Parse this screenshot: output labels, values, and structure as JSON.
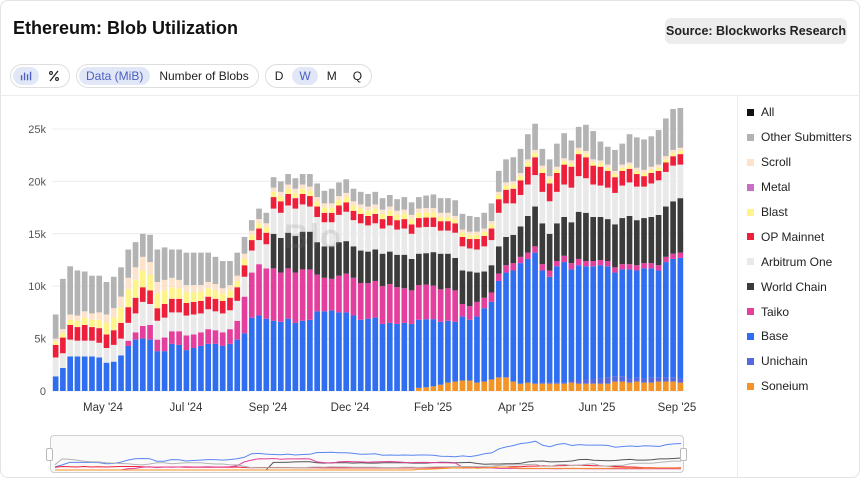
{
  "header": {
    "title": "Ethereum: Blob Utilization",
    "source_label": "Source: Blockworks Research"
  },
  "controls": {
    "bar_icon": "bar-chart-icon",
    "percent_icon": "percent-icon",
    "metric_options": [
      "Data (MiB)",
      "Number of Blobs"
    ],
    "metric_selected": "Data (MiB)",
    "interval_options": [
      "D",
      "W",
      "M",
      "Q"
    ],
    "interval_selected": "W"
  },
  "watermark": "Blo",
  "legend": [
    {
      "name": "All",
      "color": "#111111"
    },
    {
      "name": "Other Submitters",
      "color": "#b3b3b3"
    },
    {
      "name": "Scroll",
      "color": "#fde3cc"
    },
    {
      "name": "Metal",
      "color": "#c86ec4"
    },
    {
      "name": "Blast",
      "color": "#fef48a"
    },
    {
      "name": "OP Mainnet",
      "color": "#ee1f3b"
    },
    {
      "name": "Arbitrum One",
      "color": "#e9e9e9"
    },
    {
      "name": "World Chain",
      "color": "#3b3b3b"
    },
    {
      "name": "Taiko",
      "color": "#e43f9c"
    },
    {
      "name": "Base",
      "color": "#2f6ef0"
    },
    {
      "name": "Unichain",
      "color": "#5568e0"
    },
    {
      "name": "Soneium",
      "color": "#f59426"
    }
  ],
  "chart_data": {
    "type": "bar",
    "stacked": true,
    "y_tick_labels": [
      "0",
      "5k",
      "10k",
      "15k",
      "20k",
      "25k"
    ],
    "ylim": [
      0,
      25000
    ],
    "x_tick_labels": [
      "May '24",
      "Jul '24",
      "Sep '24",
      "Dec '24",
      "Feb '25",
      "Apr '25",
      "Jun '25",
      "Sep '25"
    ],
    "grid": true,
    "legend_position": "right",
    "series_order": [
      "Soneium",
      "Unichain",
      "Base",
      "Taiko",
      "World Chain",
      "Arbitrum One",
      "OP Mainnet",
      "Blast",
      "Metal",
      "Scroll",
      "Other Submitters"
    ],
    "series": [
      {
        "name": "Soneium",
        "values": [
          0,
          0,
          0,
          0,
          0,
          0,
          0,
          0,
          0,
          0,
          0,
          0,
          0,
          0,
          0,
          0,
          0,
          0,
          0,
          0,
          0,
          0,
          0,
          0,
          0,
          0,
          0,
          0,
          0,
          0,
          0,
          0,
          0,
          0,
          0,
          0,
          0,
          0,
          0,
          0,
          0,
          0,
          0,
          0,
          0,
          0,
          0,
          0,
          0,
          0,
          0,
          0,
          0,
          0,
          0,
          0,
          0,
          0,
          0,
          0,
          0,
          0,
          0,
          0,
          0,
          0,
          0,
          0,
          0,
          0,
          0,
          0,
          0,
          0,
          0,
          0,
          0,
          0,
          0,
          0,
          0,
          0,
          0,
          0,
          0,
          0,
          0
        ]
      },
      {
        "name": "Unichain",
        "values": [
          0,
          0,
          0,
          0,
          0,
          0,
          0,
          0,
          0,
          0,
          0,
          0,
          0,
          0,
          0,
          0,
          0,
          0,
          0,
          0,
          0,
          0,
          0,
          0,
          0,
          0,
          0,
          0,
          0,
          0,
          0,
          0,
          0,
          0,
          0,
          0,
          0,
          0,
          0,
          0,
          0,
          0,
          0,
          0,
          0,
          0,
          0,
          0,
          0,
          0,
          0,
          0,
          0,
          0,
          0,
          0,
          0,
          0,
          0,
          0,
          0,
          0,
          0,
          0,
          0,
          0,
          0,
          0,
          0,
          0,
          0,
          0,
          0,
          0,
          0,
          0,
          0,
          0,
          0,
          0,
          0,
          0,
          0,
          0,
          0,
          0,
          0
        ]
      }
    ],
    "note_values_by_week": "see weekly"
  },
  "weekly": {
    "Soneium": [
      0,
      0,
      0,
      0,
      0,
      0,
      0,
      0,
      0,
      0,
      0,
      0,
      0,
      0,
      0,
      0,
      0,
      0,
      0,
      0,
      0,
      0,
      0,
      0,
      0,
      0,
      0,
      0,
      0,
      0,
      0,
      0,
      0,
      0,
      0,
      0,
      0,
      0,
      0,
      0,
      0,
      0,
      0,
      0,
      0,
      0,
      0,
      0,
      0,
      0,
      300,
      350,
      450,
      600,
      800,
      900,
      1000,
      1000,
      800,
      900,
      1100,
      1300,
      1300,
      900,
      700,
      800,
      700,
      700,
      700,
      700,
      700,
      800,
      700,
      700,
      700,
      700,
      700,
      900,
      900,
      800,
      900,
      800,
      800,
      900,
      900,
      900,
      800
    ],
    "Unichain": [
      0,
      0,
      0,
      0,
      0,
      0,
      0,
      0,
      0,
      0,
      0,
      0,
      0,
      0,
      0,
      0,
      0,
      0,
      0,
      0,
      0,
      0,
      0,
      0,
      0,
      0,
      0,
      0,
      0,
      0,
      0,
      0,
      0,
      0,
      0,
      0,
      0,
      0,
      0,
      0,
      0,
      0,
      0,
      0,
      0,
      0,
      0,
      0,
      0,
      0,
      0,
      0,
      0,
      0,
      0,
      0,
      0,
      0,
      0,
      0,
      0,
      0,
      0,
      0,
      0,
      0,
      0,
      100,
      100,
      100,
      100,
      200,
      300,
      400,
      400,
      500,
      600,
      500,
      500,
      400,
      400,
      400,
      500,
      400,
      400,
      400,
      400
    ],
    "Base": [
      1400,
      2200,
      3300,
      3300,
      3300,
      3300,
      3200,
      2700,
      2800,
      3400,
      4300,
      4900,
      5000,
      4900,
      3800,
      3800,
      4500,
      4400,
      3900,
      4100,
      4300,
      4500,
      4500,
      4300,
      4500,
      4900,
      5500,
      7000,
      7200,
      6900,
      6700,
      6600,
      6900,
      6500,
      6700,
      6800,
      7600,
      7600,
      7700,
      7500,
      7500,
      7200,
      6800,
      6900,
      7000,
      6400,
      6500,
      6400,
      6500,
      6400,
      6500,
      6500,
      6400,
      6000,
      5900,
      5700,
      6100,
      5800,
      6300,
      7000,
      7400,
      9200,
      10000,
      10600,
      11500,
      11800,
      12500,
      10700,
      10100,
      11100,
      11500,
      10600,
      11000,
      10800,
      10800,
      10800,
      10600,
      9900,
      10200,
      10400,
      10200,
      10500,
      10400,
      10200,
      11000,
      11300,
      11500
    ],
    "Taiko": [
      0,
      0,
      0,
      0,
      0,
      0,
      0,
      0,
      0,
      0,
      500,
      700,
      1200,
      1400,
      1100,
      1300,
      1200,
      1300,
      1400,
      1300,
      1300,
      1400,
      1300,
      1300,
      1400,
      1800,
      3500,
      4300,
      4900,
      4800,
      5000,
      4700,
      4800,
      4800,
      4900,
      4800,
      3500,
      3200,
      3000,
      3500,
      3700,
      3600,
      3500,
      3400,
      3500,
      3600,
      3700,
      3500,
      3300,
      3200,
      3300,
      3300,
      3200,
      3100,
      3100,
      3000,
      1200,
      1300,
      1400,
      1000,
      900,
      700,
      700,
      700,
      600,
      600,
      600,
      600,
      600,
      500,
      600,
      600,
      600,
      500,
      500,
      500,
      500,
      500,
      500,
      500,
      500,
      500,
      500,
      500,
      500,
      500,
      500
    ],
    "World Chain": [
      0,
      0,
      0,
      0,
      0,
      0,
      0,
      0,
      0,
      0,
      0,
      0,
      0,
      0,
      0,
      0,
      0,
      0,
      0,
      0,
      0,
      0,
      0,
      0,
      0,
      0,
      0,
      0,
      0,
      0,
      3300,
      3300,
      3400,
      3500,
      3600,
      3600,
      3100,
      3000,
      3100,
      3200,
      3100,
      3000,
      3100,
      3000,
      3000,
      3100,
      3100,
      3100,
      3200,
      3000,
      3000,
      3000,
      3200,
      3400,
      3300,
      3100,
      3200,
      3300,
      2800,
      2500,
      2600,
      2600,
      2700,
      2700,
      2900,
      3500,
      3800,
      3900,
      3500,
      3600,
      3700,
      3900,
      4500,
      4600,
      4200,
      4100,
      4000,
      4100,
      4400,
      4600,
      4300,
      4300,
      4400,
      4800,
      4800,
      5000,
      5200
    ],
    "Arbitrum One": [
      1800,
      1400,
      1600,
      1500,
      1500,
      1500,
      1400,
      1400,
      1600,
      1600,
      1700,
      1800,
      2300,
      2000,
      1800,
      1900,
      1800,
      1800,
      1900,
      1900,
      1800,
      1900,
      1800,
      1800,
      1800,
      1900,
      1900,
      2100,
      2300,
      2300,
      2400,
      2400,
      2600,
      2600,
      2600,
      2400,
      2400,
      2300,
      2300,
      2600,
      2800,
      2500,
      2600,
      2500,
      2500,
      2400,
      2500,
      2400,
      2500,
      2400,
      2500,
      2500,
      2400,
      2200,
      2200,
      2400,
      2300,
      2200,
      2200,
      2400,
      2400,
      3200,
      3200,
      3000,
      3000,
      3000,
      3000,
      3000,
      3100,
      3000,
      3100,
      3300,
      3400,
      3300,
      3100,
      3000,
      3000,
      3000,
      3100,
      3200,
      3200,
      3000,
      3200,
      3300,
      3300,
      3400,
      3200
    ],
    "OP Mainnet": [
      1200,
      1500,
      1400,
      1300,
      1500,
      1300,
      1400,
      1300,
      1400,
      1500,
      1500,
      1500,
      1400,
      1300,
      1200,
      1300,
      1300,
      1300,
      1200,
      1200,
      1200,
      1200,
      1200,
      1200,
      1200,
      1300,
      1100,
      1000,
      1100,
      1100,
      1100,
      1100,
      1100,
      1000,
      1000,
      1000,
      1000,
      900,
      900,
      900,
      900,
      900,
      900,
      900,
      900,
      900,
      900,
      900,
      900,
      900,
      900,
      900,
      900,
      900,
      900,
      900,
      900,
      900,
      1000,
      1000,
      1100,
      1300,
      1300,
      1400,
      1400,
      1700,
      1700,
      1800,
      1700,
      1800,
      1900,
      2000,
      2100,
      2000,
      1800,
      1800,
      1600,
      1500,
      1400,
      1300,
      1200,
      1000,
      1000,
      900,
      900,
      900,
      1000
    ],
    "Blast": [
      300,
      400,
      500,
      600,
      700,
      700,
      800,
      1100,
      1200,
      1500,
      1700,
      1700,
      1600,
      1500,
      1400,
      1300,
      1100,
      1000,
      1000,
      900,
      900,
      800,
      800,
      700,
      700,
      600,
      600,
      500,
      500,
      500,
      500,
      500,
      500,
      500,
      500,
      500,
      500,
      500,
      500,
      500,
      500,
      500,
      500,
      500,
      500,
      500,
      500,
      500,
      500,
      500,
      500,
      500,
      500,
      400,
      400,
      400,
      400,
      400,
      400,
      400,
      400,
      400,
      400,
      400,
      400,
      400,
      400,
      400,
      400,
      300,
      300,
      300,
      300,
      300,
      300,
      300,
      300,
      300,
      300,
      300,
      300,
      300,
      300,
      300,
      300,
      300,
      300
    ],
    "Metal": [
      0,
      0,
      0,
      0,
      0,
      0,
      0,
      0,
      0,
      0,
      0,
      0,
      0,
      0,
      0,
      0,
      0,
      0,
      0,
      0,
      0,
      0,
      0,
      0,
      0,
      0,
      0,
      0,
      0,
      0,
      0,
      0,
      0,
      0,
      0,
      0,
      0,
      0,
      0,
      0,
      0,
      0,
      0,
      0,
      0,
      0,
      0,
      0,
      0,
      0,
      0,
      0,
      0,
      0,
      0,
      0,
      0,
      0,
      0,
      0,
      0,
      0,
      0,
      0,
      0,
      0,
      0,
      0,
      0,
      0,
      0,
      0,
      0,
      0,
      0,
      0,
      0,
      0,
      0,
      0,
      0,
      0,
      0,
      0,
      0,
      0,
      0
    ],
    "Scroll": [
      300,
      400,
      500,
      500,
      600,
      600,
      700,
      800,
      900,
      1000,
      1100,
      1200,
      1300,
      1200,
      1100,
      1000,
      900,
      800,
      700,
      700,
      600,
      600,
      600,
      500,
      500,
      500,
      500,
      400,
      400,
      400,
      400,
      400,
      400,
      400,
      400,
      400,
      400,
      400,
      400,
      400,
      400,
      400,
      400,
      400,
      400,
      400,
      400,
      400,
      400,
      400,
      400,
      400,
      400,
      400,
      400,
      300,
      300,
      300,
      300,
      300,
      300,
      300,
      300,
      300,
      300,
      300,
      300,
      300,
      300,
      300,
      300,
      300,
      300,
      300,
      300,
      300,
      300,
      300,
      300,
      300,
      300,
      300,
      300,
      300,
      300,
      300,
      300
    ],
    "Other Submitters": [
      2300,
      4800,
      4600,
      4300,
      3800,
      3600,
      3500,
      3100,
      3000,
      2800,
      2700,
      2400,
      2200,
      2600,
      3100,
      3100,
      2700,
      2900,
      3100,
      3100,
      3100,
      2800,
      2600,
      2600,
      2300,
      2200,
      1600,
      1000,
      1000,
      1000,
      1000,
      1000,
      1000,
      1000,
      1000,
      1200,
      1300,
      1200,
      1400,
      1300,
      1300,
      1200,
      1200,
      1200,
      1200,
      1100,
      1100,
      1100,
      1200,
      1200,
      1100,
      1200,
      1300,
      1400,
      1400,
      1500,
      1500,
      1500,
      1400,
      1500,
      1700,
      2000,
      2200,
      2300,
      2300,
      2400,
      2500,
      1600,
      1600,
      2200,
      2400,
      1900,
      2000,
      2500,
      2700,
      1800,
      1700,
      2000,
      2000,
      2700,
      2900,
      2900,
      2900,
      3300,
      3600,
      3900,
      3800
    ]
  },
  "brush": {
    "handle_left": "left-handle",
    "handle_right": "right-handle"
  }
}
